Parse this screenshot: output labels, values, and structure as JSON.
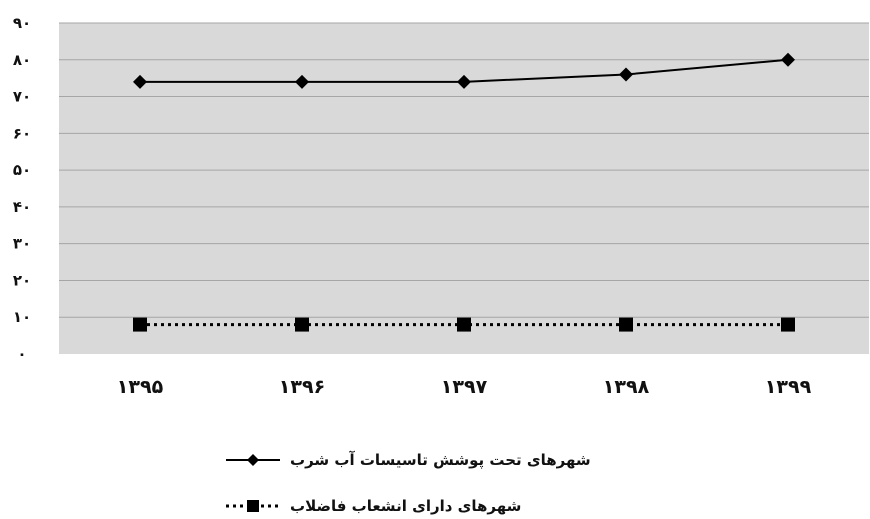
{
  "chart_data": {
    "type": "line",
    "categories": [
      "۱۳۹۵",
      "۱۳۹۶",
      "۱۳۹۷",
      "۱۳۹۸",
      "۱۳۹۹"
    ],
    "y_ticks": [
      {
        "value": 0,
        "label": "۰"
      },
      {
        "value": 10,
        "label": "۱۰"
      },
      {
        "value": 20,
        "label": "۲۰"
      },
      {
        "value": 30,
        "label": "۳۰"
      },
      {
        "value": 40,
        "label": "۴۰"
      },
      {
        "value": 50,
        "label": "۵۰"
      },
      {
        "value": 60,
        "label": "۶۰"
      },
      {
        "value": 70,
        "label": "۷۰"
      },
      {
        "value": 80,
        "label": "۸۰"
      },
      {
        "value": 90,
        "label": "۹۰"
      }
    ],
    "ylim": [
      0,
      90
    ],
    "grid": true,
    "legend_position": "bottom",
    "series": [
      {
        "name": "شهرهای تحت پوشش تاسیسات آب شرب",
        "values": [
          74,
          74,
          74,
          76,
          80
        ],
        "marker": "diamond",
        "line_style": "solid",
        "color": "#000000"
      },
      {
        "name": "شهرهای دارای انشعاب فاضلاب",
        "values": [
          8,
          8,
          8,
          8,
          8
        ],
        "marker": "square",
        "line_style": "dotted",
        "color": "#000000"
      }
    ],
    "plot_background": "#d9d9d9",
    "gridline_color": "#a6a6a6"
  }
}
